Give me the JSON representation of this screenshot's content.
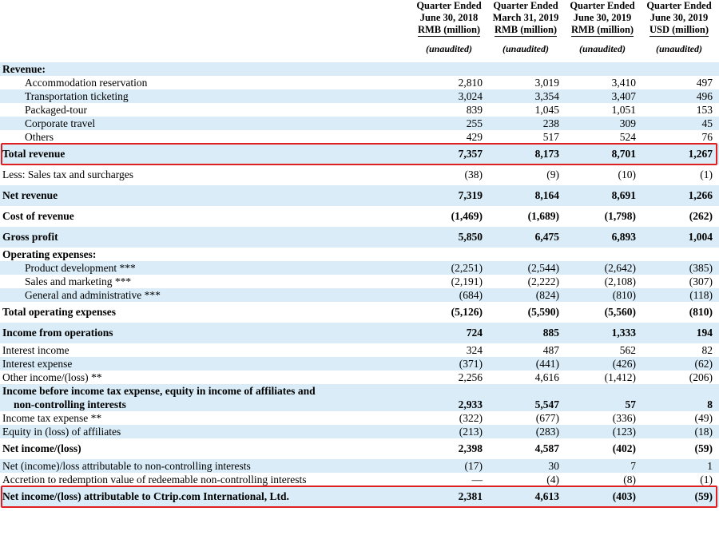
{
  "headers": [
    {
      "l1": "Quarter Ended",
      "l2": "June 30, 2018",
      "l3": "RMB (million)",
      "note": "(unaudited)"
    },
    {
      "l1": "Quarter Ended",
      "l2": "March 31, 2019",
      "l3": "RMB (million)",
      "note": "(unaudited)"
    },
    {
      "l1": "Quarter Ended",
      "l2": "June 30, 2019",
      "l3": "RMB (million)",
      "note": "(unaudited)"
    },
    {
      "l1": "Quarter Ended",
      "l2": "June 30, 2019",
      "l3": "USD (million)",
      "note": "(unaudited)"
    }
  ],
  "rows": [
    {
      "label": "Revenue:",
      "bold": true,
      "shade": true
    },
    {
      "label": "Accommodation reservation",
      "indent": true,
      "shade": false,
      "values": [
        "2,810",
        "3,019",
        "3,410",
        "497"
      ]
    },
    {
      "label": "Transportation ticketing",
      "indent": true,
      "shade": true,
      "values": [
        "3,024",
        "3,354",
        "3,407",
        "496"
      ]
    },
    {
      "label": "Packaged-tour",
      "indent": true,
      "shade": false,
      "values": [
        "839",
        "1,045",
        "1,051",
        "153"
      ]
    },
    {
      "label": "Corporate travel",
      "indent": true,
      "shade": true,
      "values": [
        "255",
        "238",
        "309",
        "45"
      ]
    },
    {
      "label": "Others",
      "indent": true,
      "shade": false,
      "values": [
        "429",
        "517",
        "524",
        "76"
      ]
    },
    {
      "label": "Total revenue",
      "bold": true,
      "shade": true,
      "tall": true,
      "values": [
        "7,357",
        "8,173",
        "8,701",
        "1,267"
      ]
    },
    {
      "label": "Less: Sales tax and surcharges",
      "shade": false,
      "tall": true,
      "values": [
        "(38)",
        "(9)",
        "(10)",
        "(1)"
      ]
    },
    {
      "label": "Net revenue",
      "bold": true,
      "shade": true,
      "tall": true,
      "values": [
        "7,319",
        "8,164",
        "8,691",
        "1,266"
      ]
    },
    {
      "label": "Cost of revenue",
      "bold": true,
      "shade": false,
      "tall": true,
      "values": [
        "(1,469)",
        "(1,689)",
        "(1,798)",
        "(262)"
      ]
    },
    {
      "label": "Gross profit",
      "bold": true,
      "shade": true,
      "tall": true,
      "values": [
        "5,850",
        "6,475",
        "6,893",
        "1,004"
      ]
    },
    {
      "label": "Operating expenses:",
      "bold": true,
      "shade": false
    },
    {
      "label": "Product development ***",
      "indent": true,
      "shade": true,
      "values": [
        "(2,251)",
        "(2,544)",
        "(2,642)",
        "(385)"
      ]
    },
    {
      "label": "Sales and marketing ***",
      "indent": true,
      "shade": false,
      "values": [
        "(2,191)",
        "(2,222)",
        "(2,108)",
        "(307)"
      ]
    },
    {
      "label": "General and administrative ***",
      "indent": true,
      "shade": true,
      "values": [
        "(684)",
        "(824)",
        "(810)",
        "(118)"
      ]
    },
    {
      "label": "Total operating expenses",
      "bold": true,
      "shade": false,
      "tall": true,
      "values": [
        "(5,126)",
        "(5,590)",
        "(5,560)",
        "(810)"
      ]
    },
    {
      "label": "Income from operations",
      "bold": true,
      "shade": true,
      "tall": true,
      "values": [
        "724",
        "885",
        "1,333",
        "194"
      ]
    },
    {
      "label": "Interest income",
      "shade": false,
      "values": [
        "324",
        "487",
        "562",
        "82"
      ]
    },
    {
      "label": "Interest expense",
      "shade": true,
      "values": [
        "(371)",
        "(441)",
        "(426)",
        "(62)"
      ]
    },
    {
      "label": "Other income/(loss) **",
      "shade": false,
      "values": [
        "2,256",
        "4,616",
        "(1,412)",
        "(206)"
      ]
    },
    {
      "label": "Income before income tax expense, equity in income of affiliates and",
      "label2": "non-controlling interests",
      "bold": true,
      "shade": true,
      "two": true,
      "values": [
        "2,933",
        "5,547",
        "57",
        "8"
      ]
    },
    {
      "label": "Income tax expense **",
      "shade": false,
      "values": [
        "(322)",
        "(677)",
        "(336)",
        "(49)"
      ]
    },
    {
      "label": "Equity in (loss) of affiliates",
      "shade": true,
      "values": [
        "(213)",
        "(283)",
        "(123)",
        "(18)"
      ]
    },
    {
      "label": "Net income/(loss)",
      "bold": true,
      "shade": false,
      "tall": true,
      "values": [
        "2,398",
        "4,587",
        "(402)",
        "(59)"
      ]
    },
    {
      "label": "Net (income)/loss attributable to non-controlling interests",
      "shade": true,
      "values": [
        "(17)",
        "30",
        "7",
        "1"
      ]
    },
    {
      "label": "Accretion to redemption value of redeemable non-controlling interests",
      "shade": false,
      "values": [
        "—",
        "(4)",
        "(8)",
        "(1)"
      ]
    },
    {
      "label": "Net income/(loss) attributable to Ctrip.com International, Ltd.",
      "bold": true,
      "shade": true,
      "tall": true,
      "values": [
        "2,381",
        "4,613",
        "(403)",
        "(59)"
      ]
    }
  ],
  "highlight_color": "#e02020",
  "shade_color": "#d9ecf7",
  "highlighted_rows": [
    "Total revenue",
    "Net income/(loss) attributable to Ctrip.com International, Ltd."
  ]
}
